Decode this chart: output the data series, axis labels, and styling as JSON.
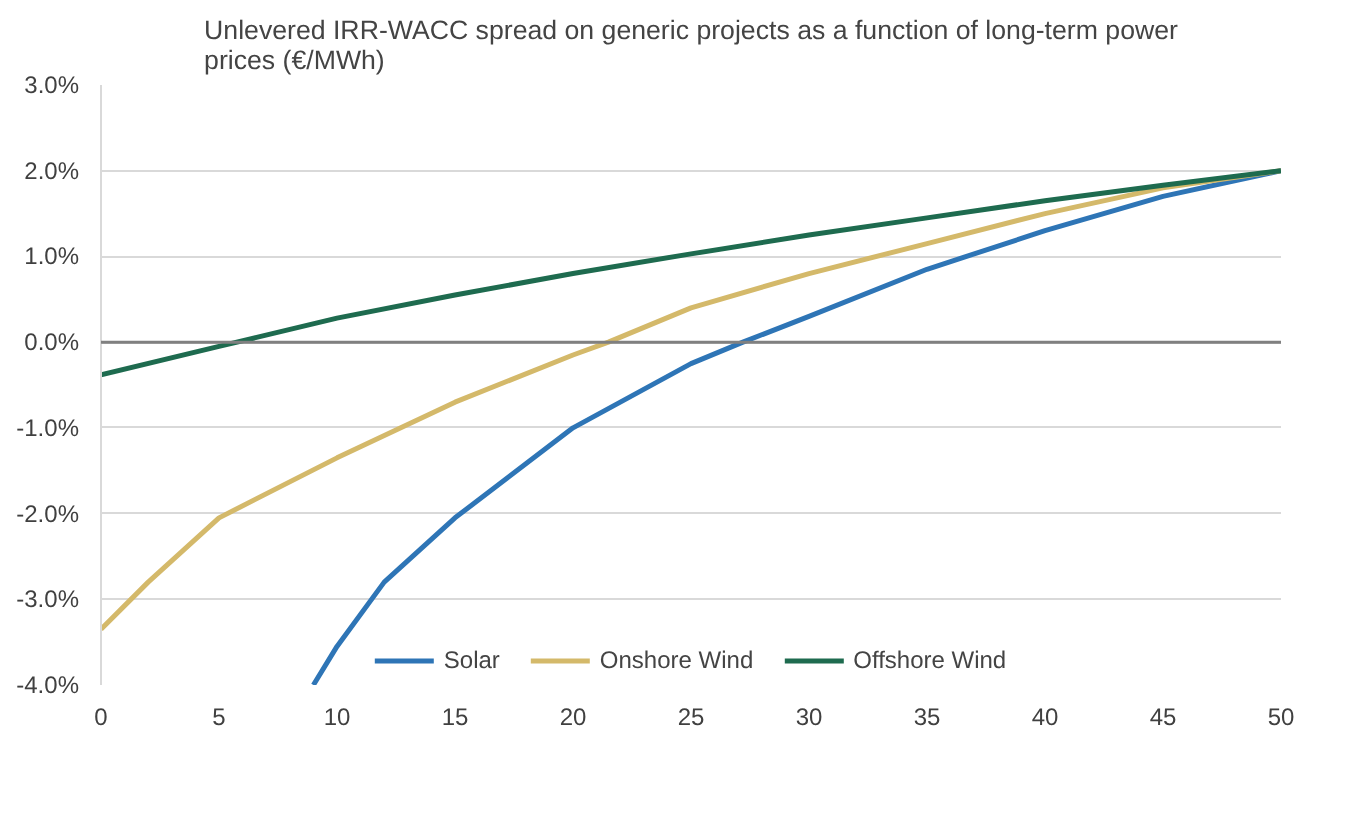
{
  "chart_data": {
    "type": "line",
    "title": "Unlevered IRR-WACC spread on generic projects as a function of long-term power\nprices (€/MWh)",
    "xlim": [
      0,
      50
    ],
    "xticks": [
      0,
      5,
      10,
      15,
      20,
      25,
      30,
      35,
      40,
      45,
      50
    ],
    "ylim": [
      -4,
      3
    ],
    "yticks": [
      {
        "value": -4,
        "label": "-4.0%"
      },
      {
        "value": -3,
        "label": "-3.0%"
      },
      {
        "value": -2,
        "label": "-2.0%"
      },
      {
        "value": -1,
        "label": "-1.0%"
      },
      {
        "value": 0,
        "label": "0.0%"
      },
      {
        "value": 1,
        "label": "1.0%"
      },
      {
        "value": 2,
        "label": "2.0%"
      },
      {
        "value": 3,
        "label": "3.0%"
      }
    ],
    "grid": "y",
    "legend": "bottom",
    "series": [
      {
        "name": "Solar",
        "color": "#2e75b6",
        "x": [
          9,
          10,
          12,
          15,
          20,
          25,
          27.2,
          30,
          35,
          40,
          45,
          50
        ],
        "values": [
          -4.0,
          -3.55,
          -2.8,
          -2.05,
          -1.0,
          -0.25,
          0,
          0.3,
          0.85,
          1.3,
          1.7,
          2.0
        ]
      },
      {
        "name": "Onshore Wind",
        "color": "#d4b96a",
        "x": [
          0,
          2,
          5,
          10,
          15,
          20,
          21.5,
          25,
          30,
          35,
          40,
          45,
          50
        ],
        "values": [
          -3.35,
          -2.8,
          -2.05,
          -1.35,
          -0.7,
          -0.15,
          0,
          0.4,
          0.8,
          1.15,
          1.5,
          1.8,
          2.0
        ]
      },
      {
        "name": "Offshore Wind",
        "color": "#1e6b4f",
        "x": [
          0,
          5,
          10,
          15,
          20,
          25,
          30,
          35,
          40,
          45,
          50
        ],
        "values": [
          -0.38,
          -0.05,
          0.28,
          0.55,
          0.8,
          1.03,
          1.25,
          1.45,
          1.65,
          1.83,
          2.0
        ]
      }
    ]
  }
}
